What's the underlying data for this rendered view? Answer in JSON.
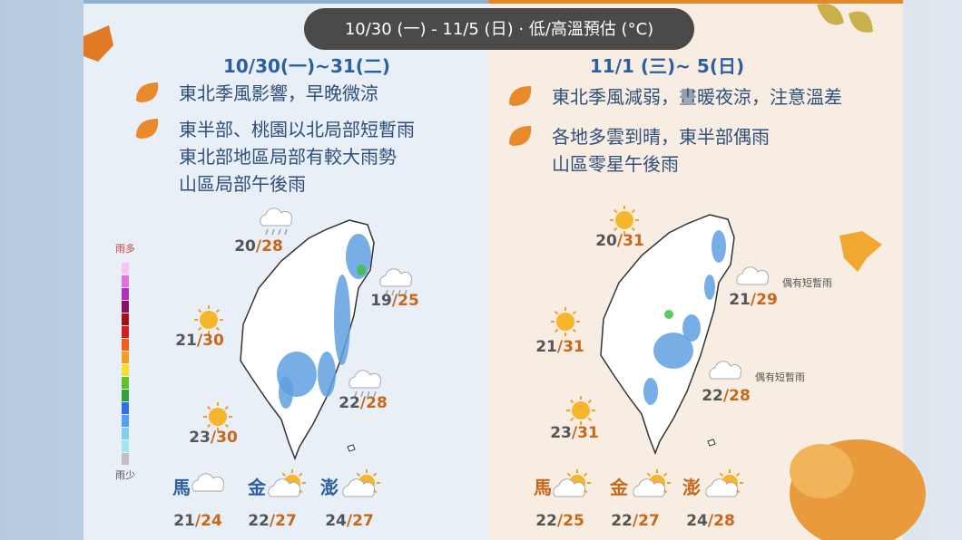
{
  "header": {
    "title": "10/30 (一) - 11/5 (日) · 低/高溫預估 (°C)"
  },
  "separator": "/",
  "legend": {
    "top": "雨多",
    "bottom": "雨少"
  },
  "panels": [
    {
      "title": "10/30(一)~31(二)",
      "bullets": [
        [
          "東北季風影響，早晚微涼"
        ],
        [
          "東半部、桃園以北局部短暫雨",
          "東北部地區局部有較大雨勢",
          "山區局部午後雨"
        ]
      ],
      "cities": [
        {
          "low": 20,
          "high": 28,
          "weather": "rain"
        },
        {
          "low": 19,
          "high": 25,
          "weather": "rain"
        },
        {
          "low": 21,
          "high": 30,
          "weather": "sun"
        },
        {
          "low": 22,
          "high": 28,
          "weather": "rain"
        },
        {
          "low": 23,
          "high": 30,
          "weather": "sun"
        }
      ],
      "islands": [
        {
          "name": "馬",
          "low": 21,
          "high": 24,
          "weather": "cloud"
        },
        {
          "name": "金",
          "low": 22,
          "high": 27,
          "weather": "suncloud"
        },
        {
          "name": "澎",
          "low": 24,
          "high": 27,
          "weather": "suncloud"
        }
      ]
    },
    {
      "title": "11/1 (三)~ 5(日)",
      "bullets": [
        [
          "東北季風減弱，晝暖夜涼，注意溫差"
        ],
        [
          "各地多雲到晴，東半部偶雨",
          "山區零星午後雨"
        ]
      ],
      "cities": [
        {
          "low": 20,
          "high": 31,
          "weather": "sun"
        },
        {
          "low": 21,
          "high": 29,
          "weather": "cloud",
          "note": "偶有短暫雨"
        },
        {
          "low": 21,
          "high": 31,
          "weather": "sun"
        },
        {
          "low": 22,
          "high": 28,
          "weather": "cloud",
          "note": "偶有短暫雨"
        },
        {
          "low": 23,
          "high": 31,
          "weather": "sun"
        }
      ],
      "islands": [
        {
          "name": "馬",
          "low": 22,
          "high": 25,
          "weather": "suncloud"
        },
        {
          "name": "金",
          "low": 22,
          "high": 27,
          "weather": "suncloud"
        },
        {
          "name": "澎",
          "low": 24,
          "high": 28,
          "weather": "suncloud"
        }
      ]
    }
  ]
}
